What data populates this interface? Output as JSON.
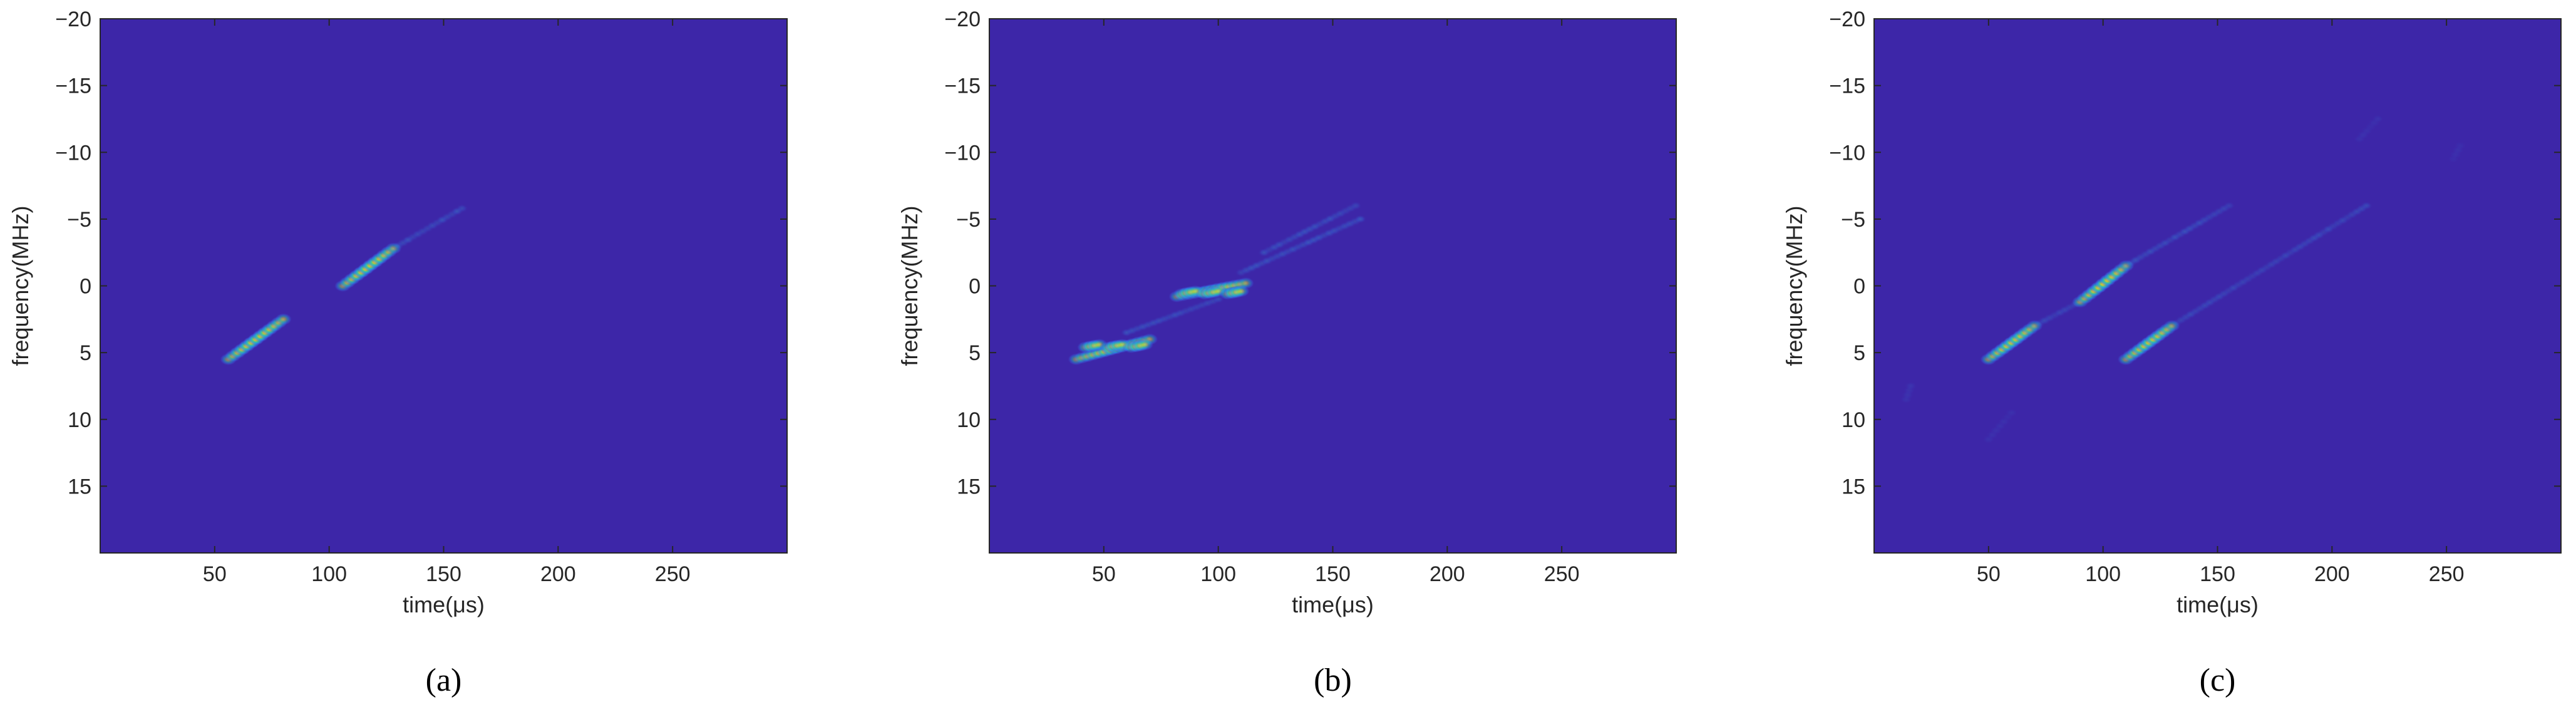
{
  "chart_data": [
    {
      "type": "heatmap",
      "panel_label": "(a)",
      "xlabel": "time(μs)",
      "ylabel": "frequency(MHz)",
      "xlim": [
        0,
        300
      ],
      "ylim": [
        -20,
        20
      ],
      "y_reversed": true,
      "xticks": [
        50,
        100,
        150,
        200,
        250
      ],
      "yticks": [
        -20,
        -15,
        -10,
        -5,
        0,
        5,
        10,
        15
      ],
      "colormap": "parula",
      "background_color": "#3d26a8",
      "segments": [
        {
          "t_start": 56,
          "t_end": 80,
          "f_start": 5.5,
          "f_end": 2.5,
          "peak": 1.0
        },
        {
          "t_start": 106,
          "t_end": 128,
          "f_start": 0.0,
          "f_end": -2.8,
          "peak": 1.0
        },
        {
          "t_start": 128,
          "t_end": 158,
          "f_start": -2.8,
          "f_end": -5.8,
          "peak": 0.35
        }
      ]
    },
    {
      "type": "heatmap",
      "panel_label": "(b)",
      "xlabel": "time(μs)",
      "ylabel": "frequency(MHz)",
      "xlim": [
        0,
        300
      ],
      "ylim": [
        -20,
        20
      ],
      "y_reversed": true,
      "xticks": [
        50,
        100,
        150,
        200,
        250
      ],
      "yticks": [
        -20,
        -15,
        -10,
        -5,
        0,
        5,
        10,
        15
      ],
      "colormap": "parula",
      "background_color": "#3d26a8",
      "segments": [
        {
          "t_start": 38,
          "t_end": 70,
          "f_start": 5.5,
          "f_end": 4.0,
          "peak": 0.9
        },
        {
          "t_start": 42,
          "t_end": 48,
          "f_start": 4.6,
          "f_end": 4.4,
          "peak": 1.0
        },
        {
          "t_start": 52,
          "t_end": 58,
          "f_start": 4.6,
          "f_end": 4.4,
          "peak": 1.0
        },
        {
          "t_start": 62,
          "t_end": 68,
          "f_start": 4.6,
          "f_end": 4.4,
          "peak": 1.0
        },
        {
          "t_start": 60,
          "t_end": 100,
          "f_start": 3.5,
          "f_end": 1.0,
          "peak": 0.35
        },
        {
          "t_start": 82,
          "t_end": 112,
          "f_start": 0.8,
          "f_end": -0.2,
          "peak": 0.9
        },
        {
          "t_start": 84,
          "t_end": 90,
          "f_start": 0.6,
          "f_end": 0.4,
          "peak": 1.0
        },
        {
          "t_start": 94,
          "t_end": 100,
          "f_start": 0.6,
          "f_end": 0.4,
          "peak": 1.0
        },
        {
          "t_start": 104,
          "t_end": 110,
          "f_start": 0.6,
          "f_end": 0.4,
          "peak": 1.0
        },
        {
          "t_start": 110,
          "t_end": 162,
          "f_start": -1.0,
          "f_end": -5.0,
          "peak": 0.4
        },
        {
          "t_start": 120,
          "t_end": 160,
          "f_start": -2.5,
          "f_end": -6.0,
          "peak": 0.35
        }
      ]
    },
    {
      "type": "heatmap",
      "panel_label": "(c)",
      "xlabel": "time(μs)",
      "ylabel": "frequency(MHz)",
      "xlim": [
        0,
        300
      ],
      "ylim": [
        -20,
        20
      ],
      "y_reversed": true,
      "xticks": [
        50,
        100,
        150,
        200,
        250
      ],
      "yticks": [
        -20,
        -15,
        -10,
        -5,
        0,
        5,
        10,
        15
      ],
      "colormap": "parula",
      "background_color": "#3d26a8",
      "segments": [
        {
          "t_start": 50,
          "t_end": 70,
          "f_start": 5.5,
          "f_end": 3.0,
          "peak": 1.0
        },
        {
          "t_start": 70,
          "t_end": 90,
          "f_start": 3.0,
          "f_end": 1.2,
          "peak": 0.3
        },
        {
          "t_start": 90,
          "t_end": 110,
          "f_start": 1.2,
          "f_end": -1.5,
          "peak": 1.0
        },
        {
          "t_start": 110,
          "t_end": 155,
          "f_start": -1.5,
          "f_end": -6.0,
          "peak": 0.35
        },
        {
          "t_start": 110,
          "t_end": 130,
          "f_start": 5.5,
          "f_end": 3.0,
          "peak": 1.0
        },
        {
          "t_start": 130,
          "t_end": 215,
          "f_start": 3.0,
          "f_end": -6.0,
          "peak": 0.3
        },
        {
          "t_start": 14,
          "t_end": 16,
          "f_start": 8.5,
          "f_end": 7.5,
          "peak": 0.12
        },
        {
          "t_start": 50,
          "t_end": 60,
          "f_start": 11.5,
          "f_end": 9.5,
          "peak": 0.1
        },
        {
          "t_start": 212,
          "t_end": 220,
          "f_start": -11.0,
          "f_end": -12.5,
          "peak": 0.1
        },
        {
          "t_start": 253,
          "t_end": 256,
          "f_start": -9.5,
          "f_end": -10.5,
          "peak": 0.1
        }
      ]
    }
  ]
}
